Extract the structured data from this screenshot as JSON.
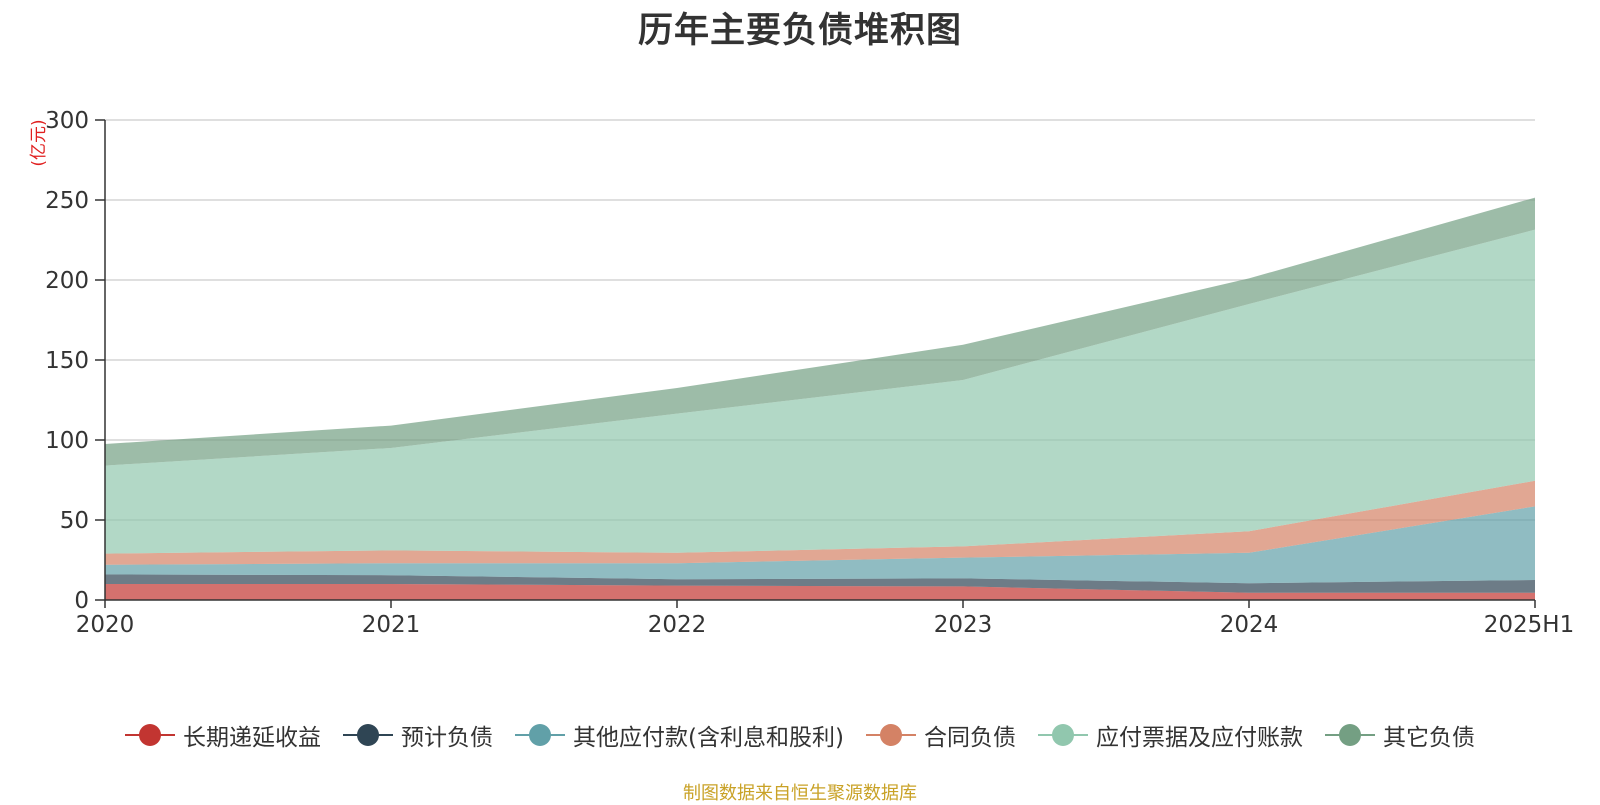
{
  "chart_data": {
    "type": "area",
    "stacked": true,
    "title": "历年主要负债堆积图",
    "unit_label": "(亿元)",
    "categories": [
      "2020",
      "2021",
      "2022",
      "2023",
      "2024",
      "2025H1"
    ],
    "ylim": [
      0,
      300
    ],
    "yticks": [
      0,
      50,
      100,
      150,
      200,
      250,
      300
    ],
    "grid": true,
    "legend_position": "bottom",
    "series": [
      {
        "name": "长期递延收益",
        "color": "#c23531",
        "values": [
          10,
          10,
          9,
          8.5,
          4.5,
          4.5
        ]
      },
      {
        "name": "预计负债",
        "color": "#2f4554",
        "values": [
          6,
          5.5,
          4,
          5,
          6,
          8
        ]
      },
      {
        "name": "其他应付款(含利息和股利)",
        "color": "#61a0a8",
        "values": [
          6,
          7.5,
          10,
          13,
          19,
          46
        ]
      },
      {
        "name": "合同负债",
        "color": "#d48265",
        "values": [
          7,
          8,
          6.5,
          7,
          13.5,
          16
        ]
      },
      {
        "name": "应付票据及应付账款",
        "color": "#91c7ae",
        "values": [
          55,
          64,
          87,
          104,
          142,
          157
        ]
      },
      {
        "name": "其它负债",
        "color": "#749f83",
        "values": [
          13.5,
          14,
          16,
          22,
          16,
          20
        ]
      }
    ]
  },
  "footer": {
    "source": "制图数据来自恒生聚源数据库"
  }
}
